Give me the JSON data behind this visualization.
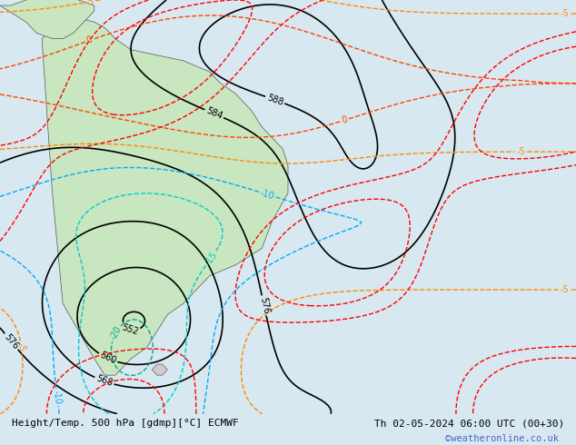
{
  "title_left": "Height/Temp. 500 hPa [gdmp][°C] ECMWF",
  "title_right": "Th 02-05-2024 06:00 UTC (00+30)",
  "watermark": "©weatheronline.co.uk",
  "background_color": "#d8e8f0",
  "land_color": "#c8e6c0",
  "border_color": "#888888",
  "bottom_bar_color": "#e8e8e8",
  "title_color": "#000000",
  "watermark_color": "#4466cc",
  "fig_width": 6.34,
  "fig_height": 4.9
}
